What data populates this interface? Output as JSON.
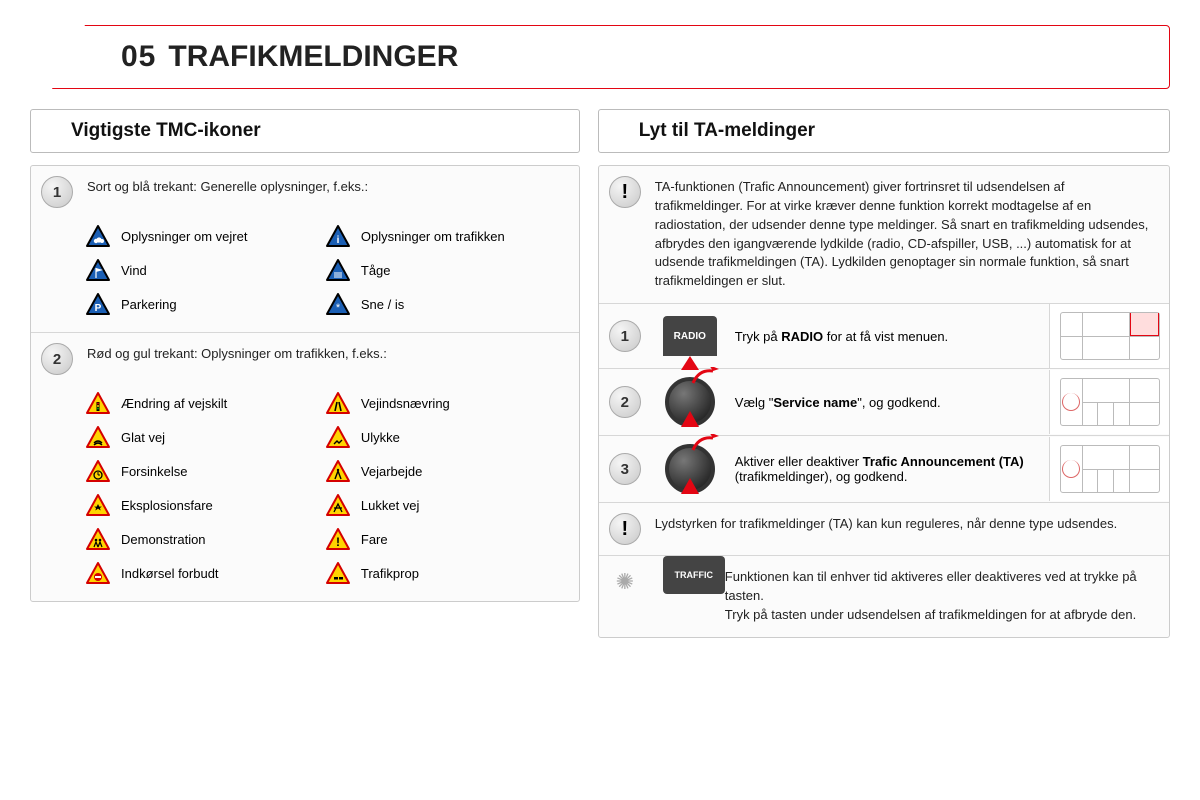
{
  "title_number": "05",
  "title_text": "TRAFIKMELDINGER",
  "left": {
    "header": "Vigtigste TMC-ikoner",
    "group1": {
      "num": "1",
      "intro": "Sort og blå trekant: Generelle oplysninger, f.eks.:",
      "items": [
        {
          "label": "Oplysninger om vejret",
          "color": "blue",
          "glyph": "cloud"
        },
        {
          "label": "Oplysninger om trafikken",
          "color": "blue",
          "glyph": "info"
        },
        {
          "label": "Vind",
          "color": "blue",
          "glyph": "flag"
        },
        {
          "label": "Tåge",
          "color": "blue",
          "glyph": "fog"
        },
        {
          "label": "Parkering",
          "color": "blue",
          "glyph": "P"
        },
        {
          "label": "Sne / is",
          "color": "blue",
          "glyph": "snow"
        }
      ]
    },
    "group2": {
      "num": "2",
      "intro": "Rød og gul trekant: Oplysninger om trafikken, f.eks.:",
      "items": [
        {
          "label": "Ændring af vejskilt",
          "color": "warn",
          "glyph": "light"
        },
        {
          "label": "Vejindsnævring",
          "color": "warn",
          "glyph": "narrow"
        },
        {
          "label": "Glat vej",
          "color": "warn",
          "glyph": "skid"
        },
        {
          "label": "Ulykke",
          "color": "warn",
          "glyph": "crash"
        },
        {
          "label": "Forsinkelse",
          "color": "warn",
          "glyph": "clock"
        },
        {
          "label": "Vejarbejde",
          "color": "warn",
          "glyph": "work"
        },
        {
          "label": "Eksplosionsfare",
          "color": "warn",
          "glyph": "blast"
        },
        {
          "label": "Lukket vej",
          "color": "warn",
          "glyph": "closed"
        },
        {
          "label": "Demonstration",
          "color": "warn",
          "glyph": "people"
        },
        {
          "label": "Fare",
          "color": "warn",
          "glyph": "excl"
        },
        {
          "label": "Indkørsel forbudt",
          "color": "warn",
          "glyph": "noentry"
        },
        {
          "label": "Trafikprop",
          "color": "warn",
          "glyph": "jam"
        }
      ]
    }
  },
  "right": {
    "header": "Lyt til TA-meldinger",
    "intro": "TA-funktionen (Trafic Announcement) giver fortrinsret til udsendelsen af trafikmeldinger. For at virke kræver denne funktion korrekt modtagelse af en radiostation, der udsender denne type meldinger. Så snart en trafikmelding udsendes, afbrydes den igangværende lydkilde (radio, CD-afspiller, USB, ...) automatisk for at udsende trafikmeldingen (TA). Lydkilden genoptager sin normale funktion, så snart trafikmeldingen er slut.",
    "step1": {
      "num": "1",
      "btn": "RADIO",
      "pre": "Tryk på ",
      "bold": "RADIO",
      "post": " for at få vist menuen."
    },
    "step2": {
      "num": "2",
      "pre": "Vælg \"",
      "bold": "Service name",
      "post": "\", og godkend."
    },
    "step3": {
      "num": "3",
      "pre": "Aktiver eller deaktiver ",
      "bold": "Trafic Announcement (TA)",
      "post": " (trafikmeldinger), og godkend."
    },
    "note": "Lydstyrken for trafikmeldinger (TA) kan kun reguleres, når denne type udsendes.",
    "tip_btn": "TRAFFIC",
    "tip": "Funktionen kan til enhver tid aktiveres eller deaktiveres ved at trykke på tasten.\nTryk på tasten under udsendelsen af trafikmeldingen for at afbryde den."
  },
  "colors": {
    "accent": "#e30613",
    "tri_blue_fill": "#1b5fb4",
    "tri_blue_stroke": "#000000",
    "tri_warn_fill": "#ffd400",
    "tri_warn_stroke": "#d40000"
  }
}
